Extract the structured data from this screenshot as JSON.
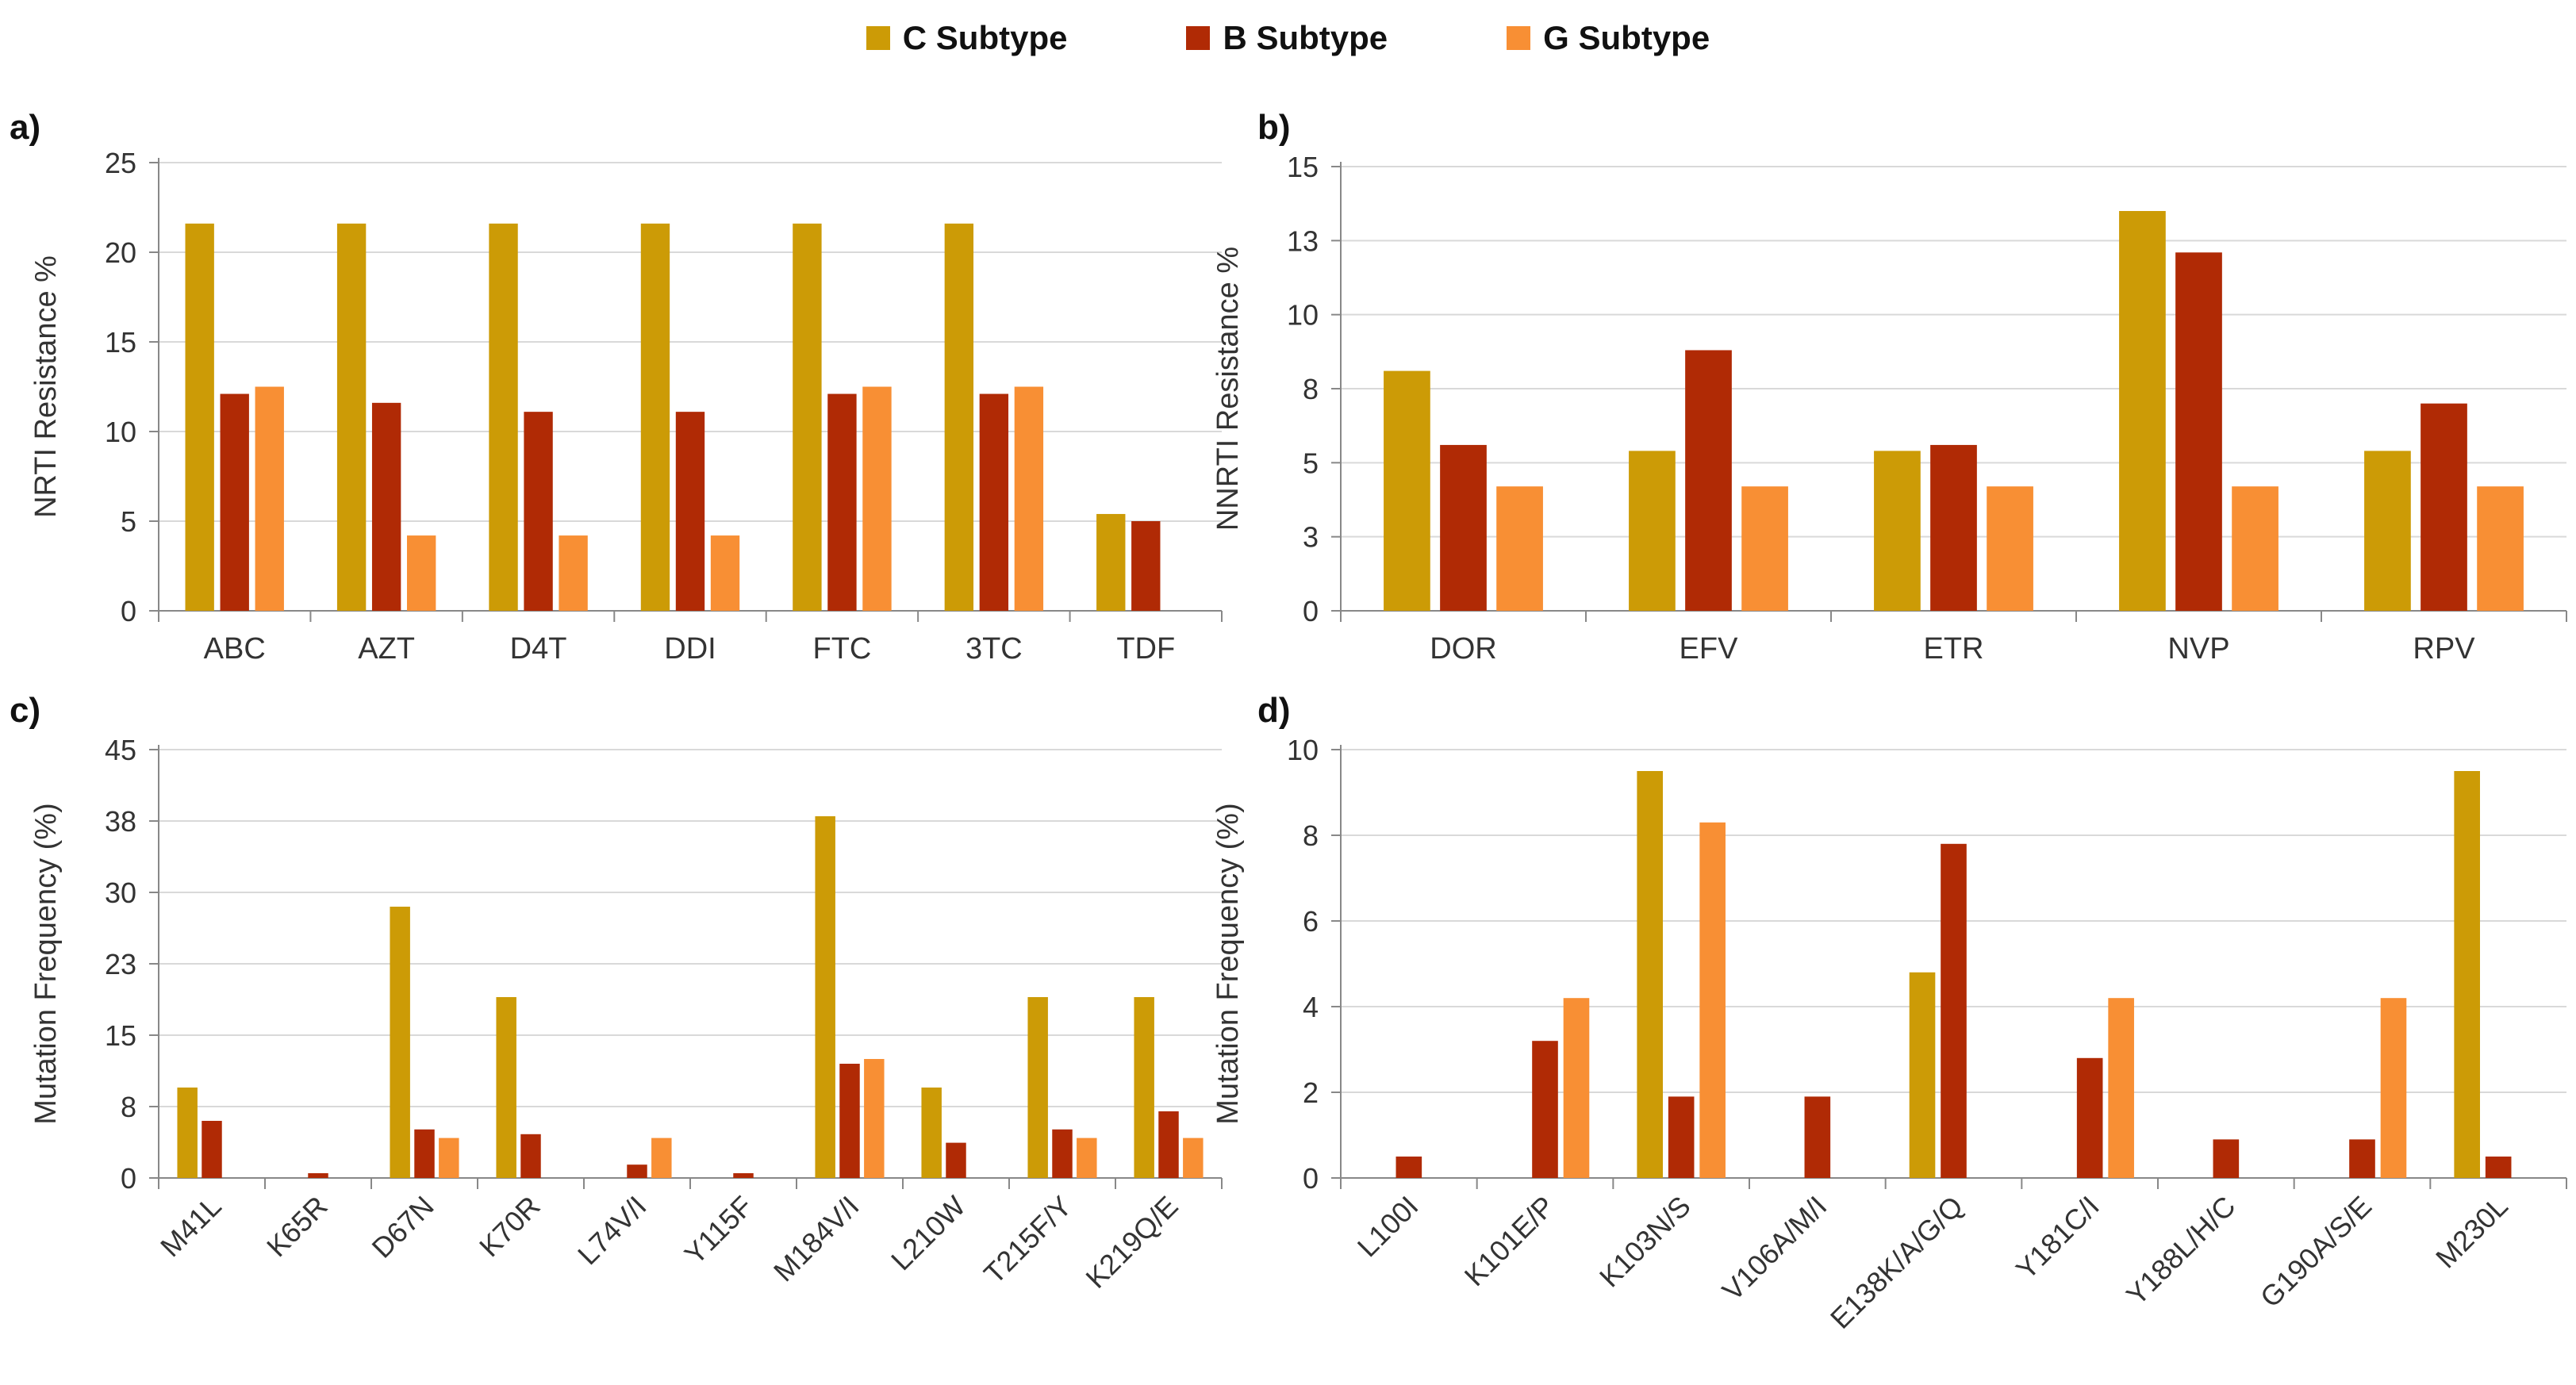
{
  "legend": [
    {
      "label": "C Subtype",
      "color": "#CC9B06"
    },
    {
      "label": "B Subtype",
      "color": "#B02A05"
    },
    {
      "label": "G Subtype",
      "color": "#F88F34"
    }
  ],
  "chart_data": [
    {
      "panel": "a)",
      "type": "bar",
      "ylabel": "NRTI Resistance  %",
      "ylim": [
        0,
        25
      ],
      "ticks": [
        "0",
        "5",
        "10",
        "15",
        "20",
        "25"
      ],
      "tick_values": [
        0,
        5,
        10,
        15,
        20,
        25
      ],
      "grid": true,
      "rotate_labels": false,
      "categories": [
        "ABC",
        "AZT",
        "D4T",
        "DDI",
        "FTC",
        "3TC",
        "TDF"
      ],
      "series": [
        {
          "name": "C Subtype",
          "values": [
            21.6,
            21.6,
            21.6,
            21.6,
            21.6,
            21.6,
            5.4
          ]
        },
        {
          "name": "B Subtype",
          "values": [
            12.1,
            11.6,
            11.1,
            11.1,
            12.1,
            12.1,
            5.0
          ]
        },
        {
          "name": "G Subtype",
          "values": [
            12.5,
            4.2,
            4.2,
            4.2,
            12.5,
            12.5,
            0
          ]
        }
      ]
    },
    {
      "panel": "b)",
      "type": "bar",
      "ylabel": "NNRTI Resistance  %",
      "ylim": [
        0,
        15
      ],
      "ticks": [
        "0",
        "3",
        "5",
        "8",
        "10",
        "13",
        "15"
      ],
      "tick_values": [
        0,
        2.5,
        5,
        7.5,
        10,
        12.5,
        15
      ],
      "grid": true,
      "rotate_labels": false,
      "categories": [
        "DOR",
        "EFV",
        "ETR",
        "NVP",
        "RPV"
      ],
      "series": [
        {
          "name": "C Subtype",
          "values": [
            8.1,
            5.4,
            5.4,
            13.5,
            5.4
          ]
        },
        {
          "name": "B Subtype",
          "values": [
            5.6,
            8.8,
            5.6,
            12.1,
            7.0
          ]
        },
        {
          "name": "G Subtype",
          "values": [
            4.2,
            4.2,
            4.2,
            4.2,
            4.2
          ]
        }
      ]
    },
    {
      "panel": "c)",
      "type": "bar",
      "ylabel": "Mutation  Frequency  (%)",
      "ylim": [
        0,
        45
      ],
      "ticks": [
        "0",
        "8",
        "15",
        "23",
        "30",
        "38",
        "45"
      ],
      "tick_values": [
        0,
        7.5,
        15,
        22.5,
        30,
        37.5,
        45
      ],
      "grid": true,
      "rotate_labels": true,
      "categories": [
        "M41L",
        "K65R",
        "D67N",
        "K70R",
        "L74V/I",
        "Y115F",
        "M184V/I",
        "L210W",
        "T215F/Y",
        "K219Q/E"
      ],
      "series": [
        {
          "name": "C Subtype",
          "values": [
            9.5,
            0,
            28.5,
            19.0,
            0,
            0,
            38.0,
            9.5,
            19.0,
            19.0
          ]
        },
        {
          "name": "B Subtype",
          "values": [
            6.0,
            0.5,
            5.1,
            4.6,
            1.4,
            0.5,
            12.0,
            3.7,
            5.1,
            7.0
          ]
        },
        {
          "name": "G Subtype",
          "values": [
            0,
            0,
            4.2,
            0,
            4.2,
            0,
            12.5,
            0,
            4.2,
            4.2
          ]
        }
      ]
    },
    {
      "panel": "d)",
      "type": "bar",
      "ylabel": "Mutation  Frequency  (%)",
      "ylim": [
        0,
        10
      ],
      "ticks": [
        "0",
        "2",
        "4",
        "6",
        "8",
        "10"
      ],
      "tick_values": [
        0,
        2,
        4,
        6,
        8,
        10
      ],
      "grid": true,
      "rotate_labels": true,
      "categories": [
        "L100I",
        "K101E/P",
        "K103N/S",
        "V106A/M/I",
        "E138K/A/G/Q",
        "Y181C/I",
        "Y188L/H/C",
        "G190A/S/E",
        "M230L"
      ],
      "series": [
        {
          "name": "C Subtype",
          "values": [
            0,
            0,
            9.5,
            0,
            4.8,
            0,
            0,
            0,
            9.5
          ]
        },
        {
          "name": "B Subtype",
          "values": [
            0.5,
            3.2,
            1.9,
            1.9,
            7.8,
            2.8,
            0.9,
            0.9,
            0.5
          ]
        },
        {
          "name": "G Subtype",
          "values": [
            0,
            4.2,
            8.3,
            0,
            0,
            4.2,
            0,
            4.2,
            0
          ]
        }
      ]
    }
  ]
}
